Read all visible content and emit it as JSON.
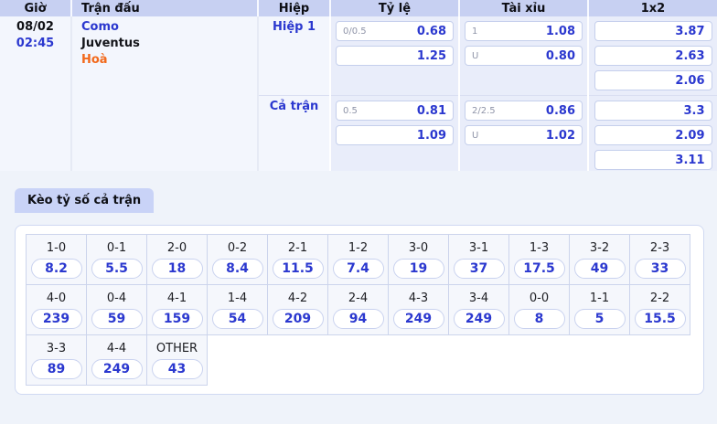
{
  "colors": {
    "header_bg": "#c7d0f2",
    "lavender_col_bg": "#e9edfa",
    "light_col_bg": "#f3f6fd",
    "accent_blue": "#2b38cf",
    "draw_orange": "#f2691c",
    "tab_bg": "#c9d3f7",
    "page_bg": "#eff3fa"
  },
  "match_table": {
    "headers": [
      "Giờ",
      "Trận đấu",
      "Hiệp",
      "Tỷ lệ",
      "Tài xỉu",
      "1x2"
    ],
    "time": {
      "date": "08/02",
      "hour": "02:45"
    },
    "teams": {
      "home": "Como",
      "away": "Juventus",
      "draw": "Hoà"
    },
    "sections": [
      {
        "label": "Hiệp 1",
        "handicap": [
          {
            "line": "0/0.5",
            "odds": "0.68"
          },
          {
            "line": "",
            "odds": "1.25"
          }
        ],
        "over_under": [
          {
            "line": "1",
            "odds": "1.08"
          },
          {
            "line": "U",
            "odds": "0.80"
          }
        ],
        "one_x_two": [
          "3.87",
          "2.63",
          "2.06"
        ]
      },
      {
        "label": "Cả trận",
        "handicap": [
          {
            "line": "0.5",
            "odds": "0.81"
          },
          {
            "line": "",
            "odds": "1.09"
          }
        ],
        "over_under": [
          {
            "line": "2/2.5",
            "odds": "0.86"
          },
          {
            "line": "U",
            "odds": "1.02"
          }
        ],
        "one_x_two": [
          "3.3",
          "2.09",
          "3.11"
        ]
      }
    ]
  },
  "score_panel": {
    "tab_label": "Kèo tỷ số cả trận",
    "rows": [
      [
        {
          "score": "1-0",
          "odds": "8.2"
        },
        {
          "score": "0-1",
          "odds": "5.5"
        },
        {
          "score": "2-0",
          "odds": "18"
        },
        {
          "score": "0-2",
          "odds": "8.4"
        },
        {
          "score": "2-1",
          "odds": "11.5"
        },
        {
          "score": "1-2",
          "odds": "7.4"
        },
        {
          "score": "3-0",
          "odds": "19"
        },
        {
          "score": "3-1",
          "odds": "37"
        },
        {
          "score": "1-3",
          "odds": "17.5"
        },
        {
          "score": "3-2",
          "odds": "49"
        },
        {
          "score": "2-3",
          "odds": "33"
        }
      ],
      [
        {
          "score": "4-0",
          "odds": "239"
        },
        {
          "score": "0-4",
          "odds": "59"
        },
        {
          "score": "4-1",
          "odds": "159"
        },
        {
          "score": "1-4",
          "odds": "54"
        },
        {
          "score": "4-2",
          "odds": "209"
        },
        {
          "score": "2-4",
          "odds": "94"
        },
        {
          "score": "4-3",
          "odds": "249"
        },
        {
          "score": "3-4",
          "odds": "249"
        },
        {
          "score": "0-0",
          "odds": "8"
        },
        {
          "score": "1-1",
          "odds": "5"
        },
        {
          "score": "2-2",
          "odds": "15.5"
        }
      ],
      [
        {
          "score": "3-3",
          "odds": "89"
        },
        {
          "score": "4-4",
          "odds": "249"
        },
        {
          "score": "OTHER",
          "odds": "43"
        }
      ]
    ]
  }
}
